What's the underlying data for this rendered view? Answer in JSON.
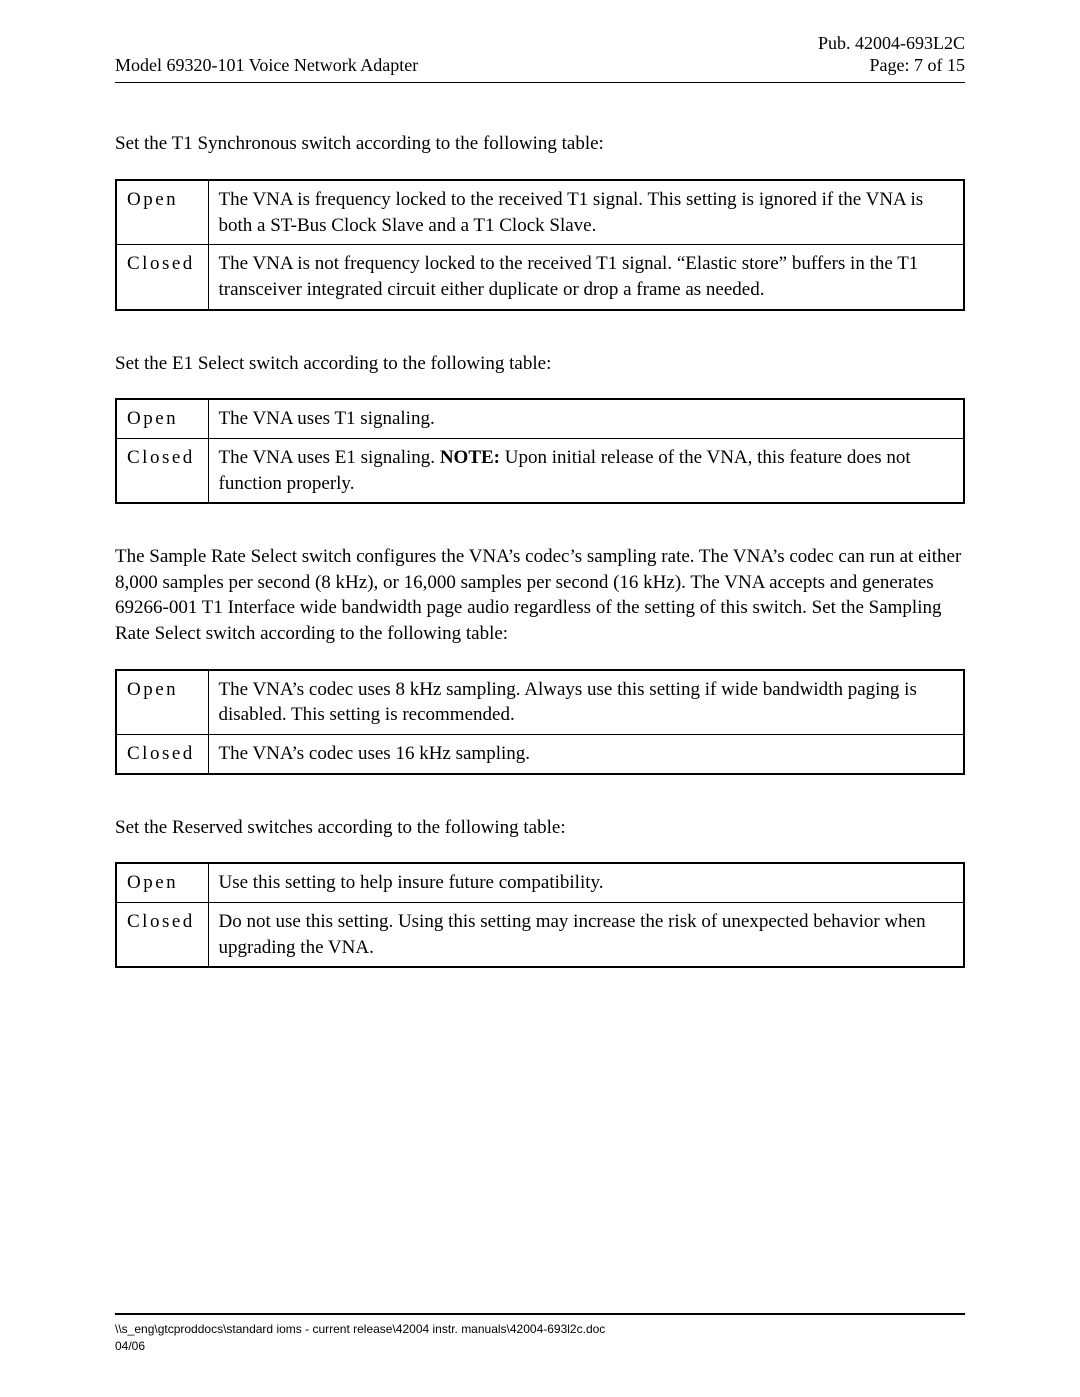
{
  "header": {
    "pub": "Pub.  42004-693L2C",
    "title": "Model 69320-101 Voice Network Adapter",
    "page": "Page:  7 of 15"
  },
  "sections": [
    {
      "intro": "Set the T1 Synchronous switch according to the following table:",
      "rows": [
        {
          "state": "Open",
          "desc": "The VNA is frequency locked to the received T1 signal.  This setting is ignored if the VNA is both a ST-Bus Clock Slave and a T1 Clock Slave."
        },
        {
          "state": "Closed",
          "desc": "The VNA is not frequency locked to the received T1 signal.  “Elastic store” buffers in the T1 transceiver integrated circuit either duplicate or drop a frame as needed."
        }
      ]
    },
    {
      "intro": "Set the E1 Select switch according to the following table:",
      "rows": [
        {
          "state": "Open",
          "desc": "The VNA uses T1 signaling."
        },
        {
          "state": "Closed",
          "desc_pre": "The VNA uses E1 signaling.  ",
          "note_label": "NOTE:",
          "desc_post": " Upon initial release of the VNA, this feature does not function properly."
        }
      ]
    },
    {
      "intro": "The Sample Rate Select switch configures the VNA’s codec’s sampling rate.  The VNA’s codec can run at either 8,000 samples per second (8 kHz), or 16,000 samples per second (16 kHz).  The VNA accepts and generates 69266-001 T1 Interface wide bandwidth page audio regardless of the setting of this switch.  Set the Sampling Rate Select switch according to the following table:",
      "rows": [
        {
          "state": "Open",
          "desc": "The VNA’s codec uses 8 kHz sampling.  Always use this setting if wide bandwidth paging is disabled.  This setting is recommended."
        },
        {
          "state": "Closed",
          "desc": "The VNA’s codec uses 16 kHz sampling."
        }
      ]
    },
    {
      "intro": "Set the Reserved switches according to the following table:",
      "rows": [
        {
          "state": "Open",
          "desc": "Use this setting to help insure future compatibility."
        },
        {
          "state": "Closed",
          "desc": "Do not use this setting.  Using this setting may increase the risk of unexpected behavior when upgrading the VNA."
        }
      ]
    }
  ],
  "footer": {
    "path": "\\\\s_eng\\gtcproddocs\\standard ioms - current release\\42004 instr. manuals\\42004-693l2c.doc",
    "date": "04/06"
  }
}
